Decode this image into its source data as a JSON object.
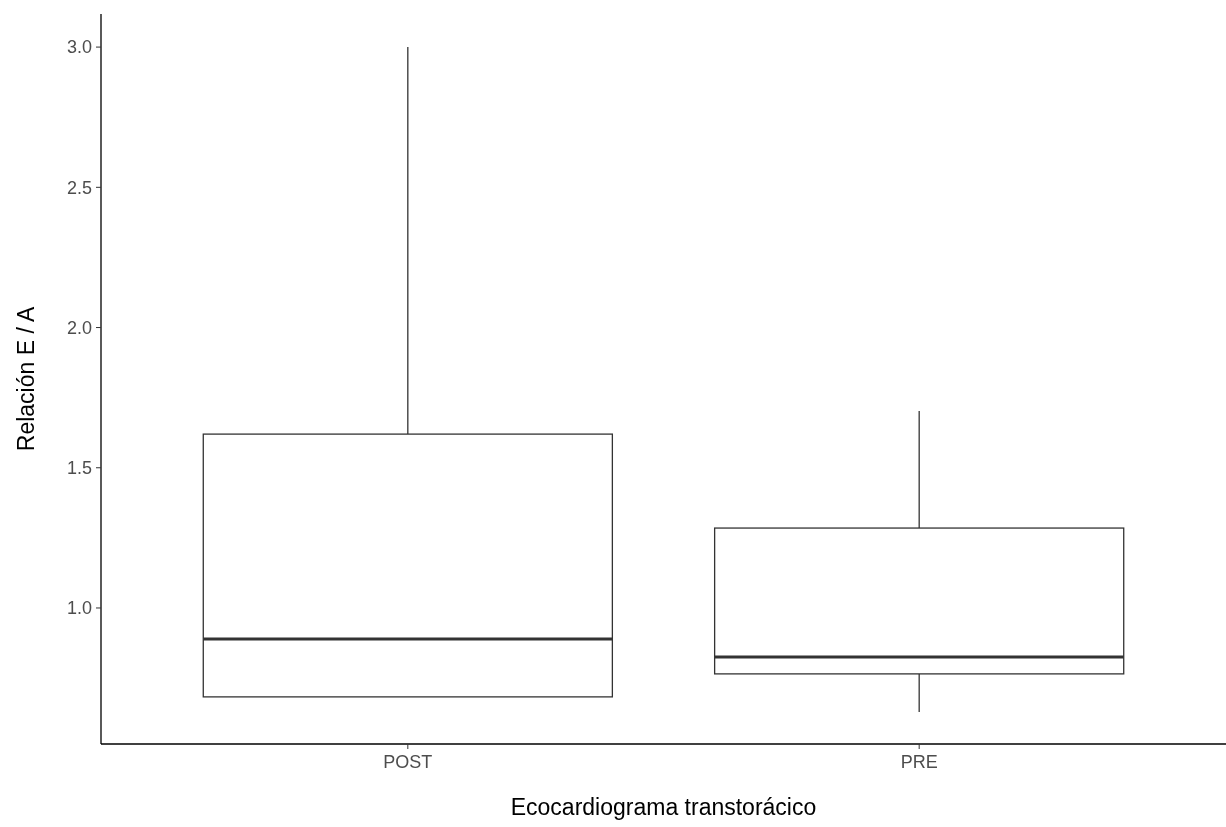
{
  "chart_data": {
    "type": "box",
    "xlabel": "Ecocardiograma transtorácico",
    "ylabel": "Relación E / A",
    "categories": [
      "POST",
      "PRE"
    ],
    "boxes": [
      {
        "low": 0.683,
        "q1": 0.683,
        "median": 0.889,
        "q3": 1.62,
        "high": 3.0
      },
      {
        "low": 0.629,
        "q1": 0.765,
        "median": 0.825,
        "q3": 1.285,
        "high": 1.702
      }
    ],
    "ylim": [
      0.515,
      3.118
    ],
    "yticks": [
      {
        "value": 1,
        "label": "1.0"
      },
      {
        "value": 1.5,
        "label": "1.5"
      },
      {
        "value": 2,
        "label": "2.0"
      },
      {
        "value": 2.5,
        "label": "2.5"
      },
      {
        "value": 3,
        "label": "3.0"
      }
    ],
    "grid": false
  }
}
